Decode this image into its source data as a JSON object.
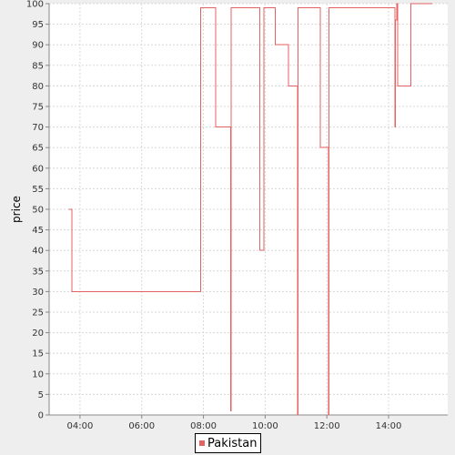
{
  "chart_data": {
    "type": "line",
    "step": true,
    "title": "",
    "xlabel": "",
    "ylabel": "price",
    "xlim": [
      "03:00",
      "15:55"
    ],
    "ylim": [
      0,
      100
    ],
    "x_ticks": [
      "04:00",
      "06:00",
      "08:00",
      "10:00",
      "12:00",
      "14:00"
    ],
    "y_ticks": [
      0,
      5,
      10,
      15,
      20,
      25,
      30,
      35,
      40,
      45,
      50,
      55,
      60,
      65,
      70,
      75,
      80,
      85,
      90,
      95,
      100
    ],
    "grid": true,
    "legend_position": "bottom",
    "series": [
      {
        "name": "Pakistan",
        "color": "#e46262",
        "points": [
          [
            "03:38",
            50
          ],
          [
            "03:44",
            30
          ],
          [
            "07:55",
            99
          ],
          [
            "08:24",
            70
          ],
          [
            "08:53",
            1
          ],
          [
            "08:54",
            99
          ],
          [
            "09:50",
            40
          ],
          [
            "09:58",
            99
          ],
          [
            "10:20",
            90
          ],
          [
            "10:45",
            80
          ],
          [
            "11:03",
            0
          ],
          [
            "11:04",
            99
          ],
          [
            "11:47",
            65
          ],
          [
            "12:03",
            0
          ],
          [
            "12:04",
            99
          ],
          [
            "14:12",
            70
          ],
          [
            "14:13",
            96
          ],
          [
            "14:16",
            100
          ],
          [
            "14:18",
            80
          ],
          [
            "14:43",
            100
          ],
          [
            "15:25",
            100
          ]
        ]
      }
    ]
  }
}
